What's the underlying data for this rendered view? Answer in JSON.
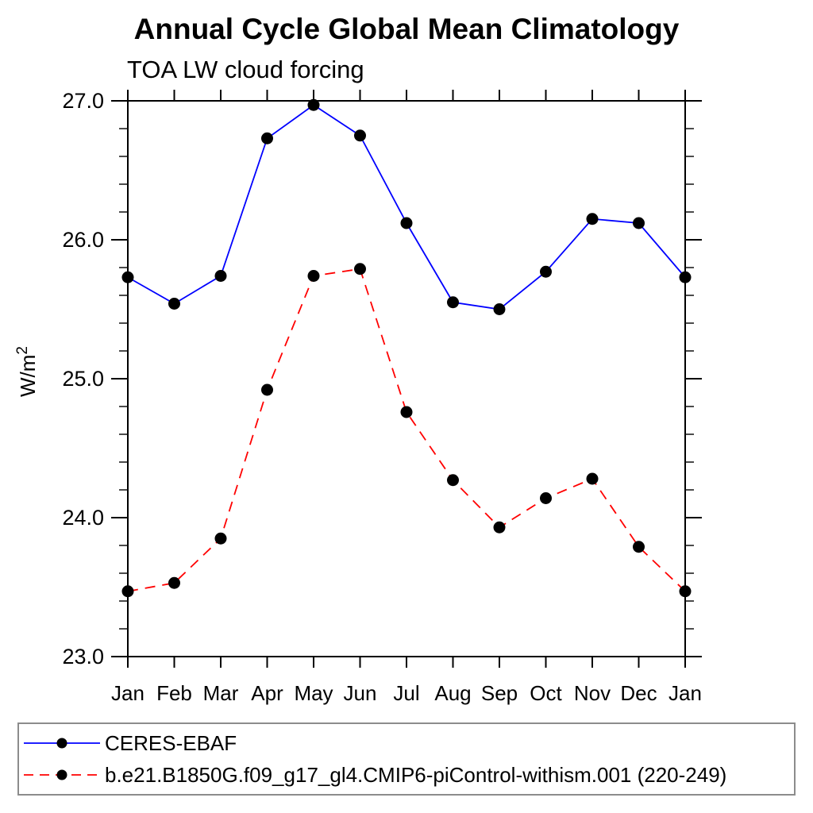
{
  "header": {
    "title": "Annual Cycle Global Mean Climatology",
    "subtitle": "TOA LW cloud forcing"
  },
  "chart_data": {
    "type": "line",
    "title": "Annual Cycle Global Mean Climatology",
    "subtitle": "TOA LW cloud forcing",
    "ylabel": "W/m²",
    "xlabel": "",
    "x_categories": [
      "Jan",
      "Feb",
      "Mar",
      "Apr",
      "May",
      "Jun",
      "Jul",
      "Aug",
      "Sep",
      "Oct",
      "Nov",
      "Dec",
      "Jan"
    ],
    "ylim": [
      23.0,
      27.0
    ],
    "y_major_ticks": [
      "23.0",
      "24.0",
      "25.0",
      "26.0",
      "27.0"
    ],
    "y_minor_step": 0.2,
    "grid": false,
    "legend_position": "bottom",
    "axis_color": "#000000",
    "marker_color": "#000000",
    "series": [
      {
        "name": "CERES-EBAF",
        "color": "#0000ff",
        "style": "solid",
        "marker": "circle",
        "values": [
          25.73,
          25.54,
          25.74,
          26.73,
          26.97,
          26.75,
          26.12,
          25.55,
          25.5,
          25.77,
          26.15,
          26.12,
          25.73
        ]
      },
      {
        "name": "b.e21.B1850G.f09_g17_gl4.CMIP6-piControl-withism.001 (220-249)",
        "color": "#ff0000",
        "style": "dashed",
        "marker": "circle",
        "values": [
          23.47,
          23.53,
          23.85,
          24.92,
          25.74,
          25.79,
          24.76,
          24.27,
          23.93,
          24.14,
          24.28,
          23.79,
          23.47
        ]
      }
    ]
  }
}
